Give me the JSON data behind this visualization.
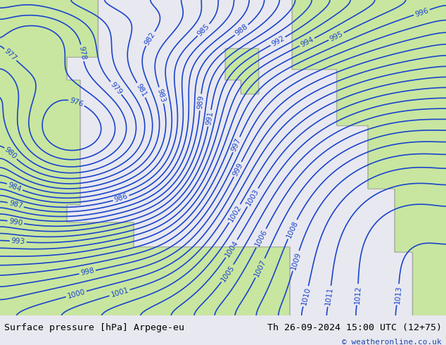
{
  "title_left": "Surface pressure [hPa] Arpege-eu",
  "title_right": "Th 26-09-2024 15:00 UTC (12+75)",
  "copyright": "© weatheronline.co.uk",
  "bg_color": "#e8e8f0",
  "land_color": "#c8e6a0",
  "contour_color": "#1a44cc",
  "contour_label_color": "#1a44cc",
  "footer_bg": "#e0e0e0",
  "footer_text_color": "#000000",
  "contour_linewidth": 1.2,
  "label_fontsize": 7.5,
  "footer_fontsize": 9.5,
  "copyright_fontsize": 8
}
